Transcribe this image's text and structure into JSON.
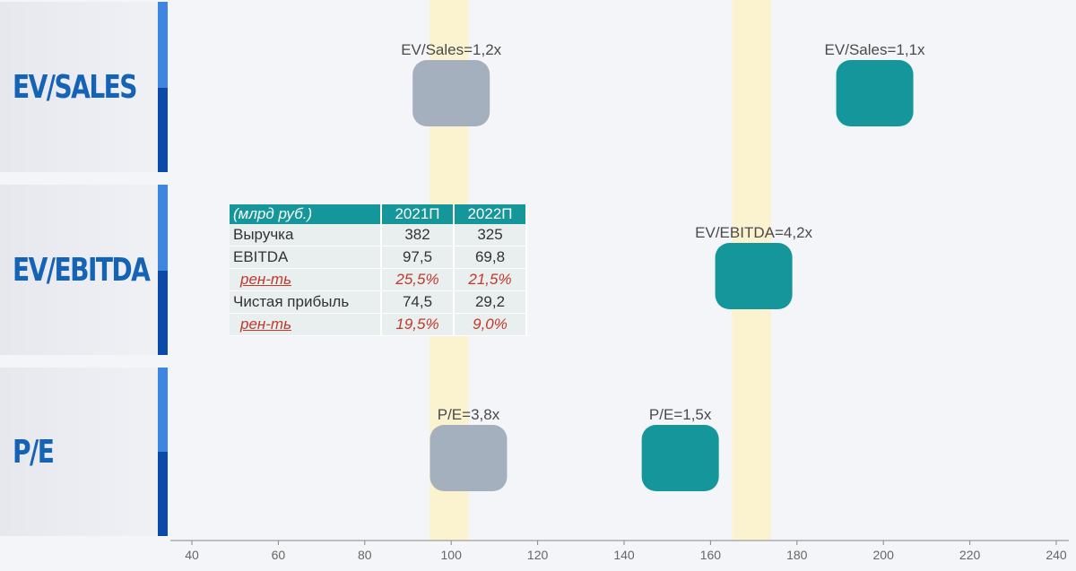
{
  "row_labels": [
    "EV/SALES",
    "EV/EBITDA",
    "P/E"
  ],
  "colors": {
    "grey": "#a4b0bd",
    "teal": "#14969a",
    "highlight": "#fbf2cf",
    "accent_light": "#3f86e0",
    "accent_dark": "#0b4aa8",
    "label": "#1563b5"
  },
  "chart_data": {
    "type": "scatter",
    "x_axis": {
      "range": [
        40,
        240
      ],
      "ticks": [
        40,
        60,
        80,
        100,
        120,
        140,
        160,
        180,
        200,
        220,
        240
      ]
    },
    "highlight_bands": [
      [
        95,
        104
      ],
      [
        165,
        174
      ]
    ],
    "points": [
      {
        "row": "EV/SALES",
        "x": 100,
        "label": "EV/Sales=1,2x",
        "color": "grey"
      },
      {
        "row": "EV/SALES",
        "x": 198,
        "label": "EV/Sales=1,1x",
        "color": "teal"
      },
      {
        "row": "EV/EBITDA",
        "x": 170,
        "label": "EV/EBITDA=4,2x",
        "color": "teal"
      },
      {
        "row": "P/E",
        "x": 104,
        "label": "P/E=3,8x",
        "color": "grey"
      },
      {
        "row": "P/E",
        "x": 153,
        "label": "P/E=1,5x",
        "color": "teal"
      }
    ]
  },
  "table": {
    "headers": [
      "(млрд руб.)",
      "2021П",
      "2022П"
    ],
    "rows": [
      {
        "label": "Выручка",
        "v1": "382",
        "v2": "325",
        "margin": false
      },
      {
        "label": "EBITDA",
        "v1": "97,5",
        "v2": "69,8",
        "margin": false
      },
      {
        "label": "рен-ть",
        "v1": "25,5%",
        "v2": "21,5%",
        "margin": true
      },
      {
        "label": "Чистая прибыль",
        "v1": "74,5",
        "v2": "29,2",
        "margin": false
      },
      {
        "label": "рен-ть",
        "v1": "19,5%",
        "v2": "9,0%",
        "margin": true
      }
    ]
  }
}
